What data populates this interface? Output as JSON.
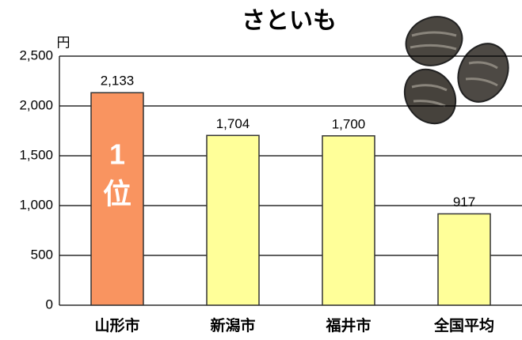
{
  "chart_data": {
    "type": "bar",
    "title": "さといも",
    "y_unit": "円",
    "categories": [
      "山形市",
      "新潟市",
      "福井市",
      "全国平均"
    ],
    "values": [
      2133,
      1704,
      1700,
      917
    ],
    "value_labels": [
      "2,133",
      "1,704",
      "1,700",
      "917"
    ],
    "colors": [
      "#f99460",
      "#ffff99",
      "#ffff99",
      "#ffff99"
    ],
    "annotation": [
      "1",
      "位"
    ],
    "ylim": [
      0,
      2500
    ],
    "yticks": [
      0,
      500,
      {
        "value": 1000,
        "label": "1,000"
      },
      {
        "value": 1500,
        "label": "1,500"
      },
      {
        "value": 2000,
        "label": "2,000"
      },
      {
        "value": 2500,
        "label": "2,500"
      }
    ],
    "grid": true
  }
}
